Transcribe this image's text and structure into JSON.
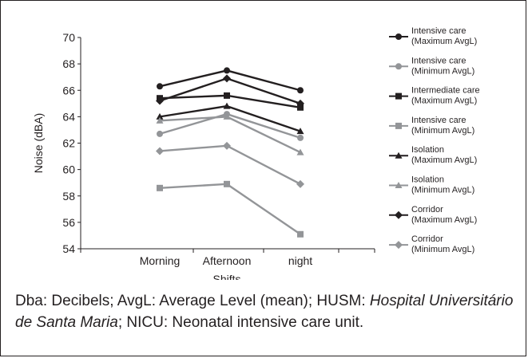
{
  "chart_data": {
    "type": "line",
    "categories": [
      "Morning",
      "Afternoon",
      "night"
    ],
    "xlabel": "Shifts",
    "ylabel": "Noise (dBA)",
    "ylim": [
      54,
      70
    ],
    "yticks": [
      54,
      56,
      58,
      60,
      62,
      64,
      66,
      68,
      70
    ],
    "grid": false,
    "legend_position": "right",
    "series": [
      {
        "name": "Intensive care (Maximum AvgL)",
        "legend_lines": [
          "Intensive care",
          "(Maximum AvgL)"
        ],
        "marker": "circle",
        "color": "#231f20",
        "values": [
          66.3,
          67.5,
          66.0
        ]
      },
      {
        "name": "Intensive care (Minimum AvgL)",
        "legend_lines": [
          "Intensive care",
          "(Minimum AvgL)"
        ],
        "marker": "circle",
        "color": "#939598",
        "values": [
          62.7,
          64.2,
          62.4
        ]
      },
      {
        "name": "Intermediate care (Maximum AvgL)",
        "legend_lines": [
          "Intermediate care",
          "(Maximum AvgL)"
        ],
        "marker": "square",
        "color": "#231f20",
        "values": [
          65.4,
          65.6,
          64.7
        ]
      },
      {
        "name": "Intensive care (Minimum AvgL)",
        "legend_lines": [
          "Intensive care",
          "(Minimum AvgL)"
        ],
        "marker": "square",
        "color": "#939598",
        "values": [
          58.6,
          58.9,
          55.1
        ]
      },
      {
        "name": "Isolation (Maximum AvgL)",
        "legend_lines": [
          "Isolation",
          "(Maximum AvgL)"
        ],
        "marker": "triangle",
        "color": "#231f20",
        "values": [
          64.0,
          64.8,
          62.9
        ]
      },
      {
        "name": "Isolation (Minimum AvgL)",
        "legend_lines": [
          "Isolation",
          "(Minimum AvgL)"
        ],
        "marker": "triangle",
        "color": "#939598",
        "values": [
          63.7,
          64.0,
          61.3
        ]
      },
      {
        "name": "Corridor (Maximum AvgL)",
        "legend_lines": [
          "Corridor",
          "(Maximum AvgL)"
        ],
        "marker": "diamond",
        "color": "#231f20",
        "values": [
          65.2,
          66.9,
          65.0
        ]
      },
      {
        "name": "Corridor (Minimum AvgL)",
        "legend_lines": [
          "Corridor",
          "(Minimum AvgL)"
        ],
        "marker": "diamond",
        "color": "#939598",
        "values": [
          61.4,
          61.8,
          58.9
        ]
      }
    ]
  },
  "caption": {
    "part1": "Dba:  Decibels; AvgL: Average Level (mean); HUSM: ",
    "italic": "Hospital Universitário de Santa Maria",
    "part2": "; NICU: Neonatal intensive care unit."
  }
}
